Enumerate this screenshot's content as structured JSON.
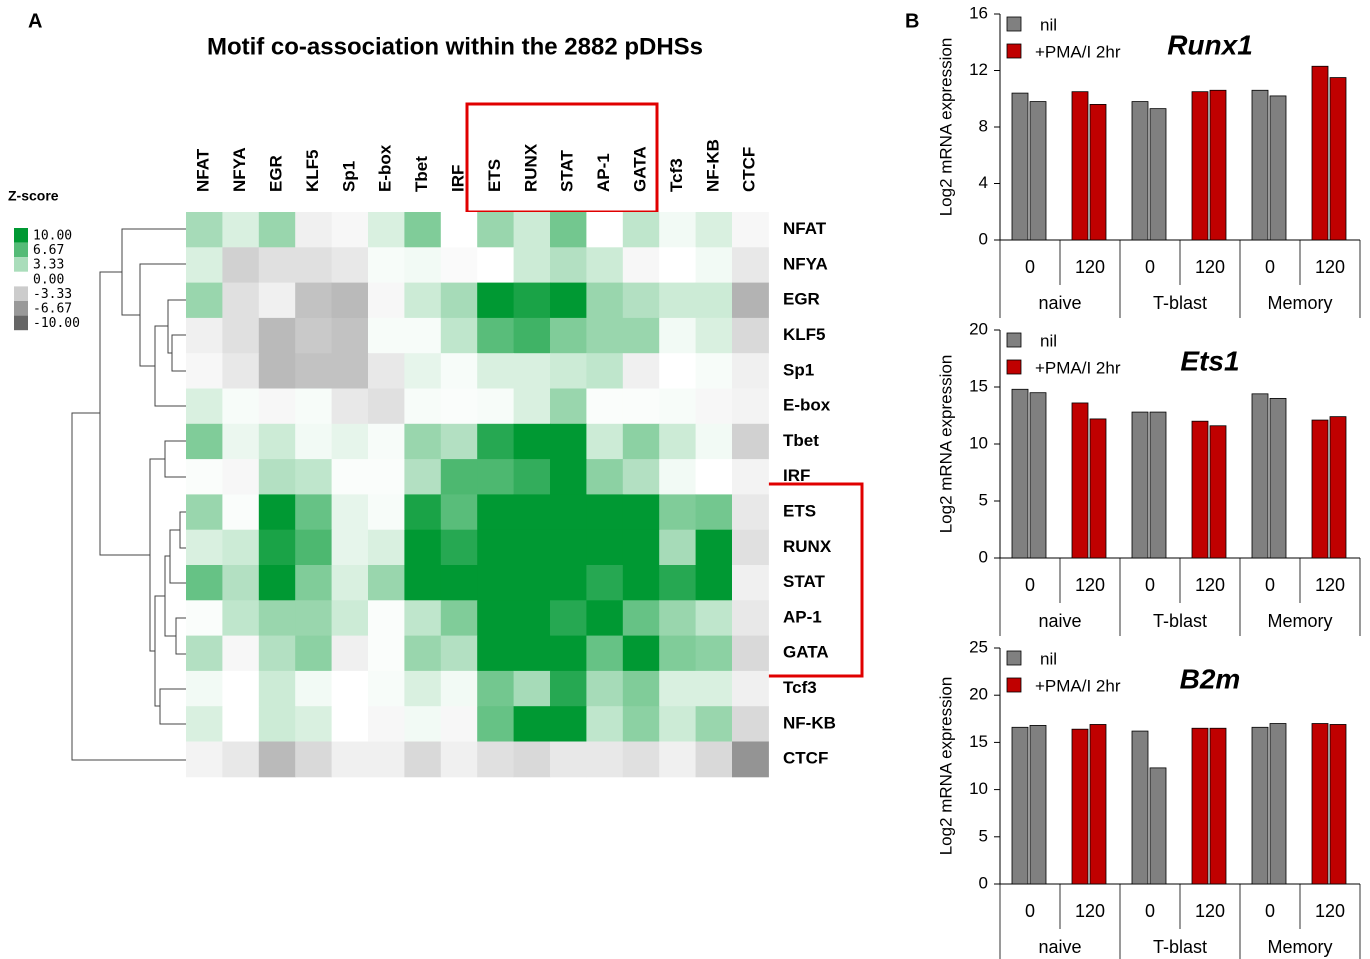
{
  "chart_data": [
    {
      "type": "heatmap",
      "panel_label": "A",
      "title": "Motif co-association within the 2882 pDHSs",
      "x_categories": [
        "NFAT",
        "NFYA",
        "EGR",
        "KLF5",
        "Sp1",
        "E-box",
        "Tbet",
        "IRF",
        "ETS",
        "RUNX",
        "STAT",
        "AP-1",
        "GATA",
        "Tcf3",
        "NF-KB",
        "CTCF"
      ],
      "y_categories": [
        "NFAT",
        "NFYA",
        "EGR",
        "KLF5",
        "Sp1",
        "E-box",
        "Tbet",
        "IRF",
        "ETS",
        "RUNX",
        "STAT",
        "AP-1",
        "GATA",
        "Tcf3",
        "NF-KB",
        "CTCF"
      ],
      "values": [
        [
          3.5,
          1.5,
          4,
          -1,
          -0.5,
          1.5,
          5,
          0,
          4,
          2,
          5.5,
          0,
          2.5,
          0.5,
          1.5,
          -0.5
        ],
        [
          1.5,
          -3,
          -2,
          -2,
          -1.5,
          0.3,
          0.5,
          -0.3,
          0,
          2,
          3,
          2,
          -0.5,
          0,
          0.5,
          -1.5
        ],
        [
          4,
          -2,
          -1,
          -4,
          -4.5,
          -0.5,
          2,
          3.5,
          10,
          9,
          10,
          4,
          3,
          2,
          2,
          -5
        ],
        [
          -1,
          -2,
          -4.5,
          -3.5,
          -4,
          0.3,
          0.3,
          2.5,
          6.5,
          7.5,
          5,
          4,
          4,
          0.5,
          1.5,
          -2.5
        ],
        [
          -0.5,
          -1.5,
          -4.5,
          -4,
          -4,
          -1.5,
          1,
          0.3,
          1.5,
          1.5,
          2,
          2.5,
          -1,
          0,
          0.3,
          -1
        ],
        [
          1.5,
          0.3,
          -0.5,
          0.3,
          -1.5,
          -2,
          0.3,
          0.2,
          0.3,
          1.5,
          4,
          0.2,
          0.2,
          0.3,
          -0.5,
          -0.8
        ],
        [
          5,
          0.8,
          2,
          0.5,
          1,
          0.3,
          4,
          3,
          8.5,
          10,
          10,
          2,
          4.5,
          2,
          0.5,
          -3
        ],
        [
          0.2,
          -0.5,
          3,
          2.5,
          0.2,
          0.2,
          3,
          7,
          7,
          8,
          10,
          4.5,
          3,
          0.5,
          0,
          -0.8
        ],
        [
          4,
          0.2,
          10,
          6,
          1,
          0.3,
          9,
          6.5,
          10,
          10,
          10,
          10,
          10,
          5,
          5.5,
          -1.5
        ],
        [
          1.5,
          2,
          9,
          7,
          1,
          1.5,
          10,
          8.5,
          10,
          10,
          10,
          10,
          10,
          3.5,
          10,
          -2
        ],
        [
          6,
          3,
          10,
          5,
          1.5,
          4,
          10,
          10,
          10,
          10,
          10,
          8.5,
          10,
          8.5,
          10,
          -1
        ],
        [
          0.2,
          2.5,
          4,
          4,
          2,
          0.2,
          2.5,
          5,
          10,
          10,
          8.5,
          10,
          6,
          4,
          2.5,
          -1.5
        ],
        [
          3,
          -0.5,
          3,
          4.5,
          -1,
          0.2,
          4,
          3,
          10,
          10,
          10,
          6,
          10,
          5,
          4.5,
          -2.5
        ],
        [
          0.5,
          0,
          2,
          0.5,
          0,
          0.3,
          1.5,
          0.5,
          5.5,
          3.5,
          8.5,
          3.5,
          5,
          1.5,
          1.5,
          -1
        ],
        [
          1.5,
          0,
          2,
          1.5,
          0,
          -0.5,
          0.5,
          -0.5,
          6,
          10,
          10,
          2.5,
          4.5,
          2,
          4,
          -2.5
        ],
        [
          -0.8,
          -1.5,
          -4.5,
          -2.5,
          -1,
          -1,
          -2.5,
          -1,
          -2,
          -2.5,
          -1.5,
          -1.5,
          -2,
          -1,
          -2.5,
          -7
        ]
      ],
      "zlim": [
        -10,
        10
      ],
      "colors": {
        "high": "#009933",
        "mid": "#ffffff",
        "low": "#666666"
      },
      "legend": {
        "title": "Z-score",
        "ticks": [
          {
            "value": 10,
            "label": "10.00"
          },
          {
            "value": 6.67,
            "label": "6.67"
          },
          {
            "value": 3.33,
            "label": "3.33"
          },
          {
            "value": 0,
            "label": "0.00"
          },
          {
            "value": -3.33,
            "label": "-3.33"
          },
          {
            "value": -6.67,
            "label": "-6.67"
          },
          {
            "value": -10,
            "label": "-10.00"
          }
        ]
      }
    },
    {
      "type": "bar",
      "panel_label": "B",
      "title": "Runx1",
      "ylabel": "Log2 mRNA  expression",
      "categories": [
        "0",
        "120",
        "0",
        "120",
        "0",
        "120"
      ],
      "groups": [
        "naive",
        "T-blast",
        "Memory"
      ],
      "series": [
        {
          "name": "nil",
          "color": "#808080",
          "values": [
            [
              10.4,
              9.8
            ],
            null,
            [
              9.8,
              9.3
            ],
            null,
            [
              10.6,
              10.2
            ],
            null
          ]
        },
        {
          "name": "+PMA/I 2hr",
          "color": "#c00000",
          "values": [
            null,
            [
              10.5,
              9.6
            ],
            null,
            [
              10.5,
              10.6
            ],
            null,
            [
              12.3,
              11.5
            ]
          ]
        }
      ],
      "ylim": [
        0,
        16
      ],
      "yticks": [
        0,
        4,
        8,
        12,
        16
      ],
      "legend": "upper left"
    },
    {
      "type": "bar",
      "title": "Ets1",
      "ylabel": "Log2 mRNA  expression",
      "categories": [
        "0",
        "120",
        "0",
        "120",
        "0",
        "120"
      ],
      "groups": [
        "naive",
        "T-blast",
        "Memory"
      ],
      "series": [
        {
          "name": "nil",
          "color": "#808080",
          "values": [
            [
              14.8,
              14.5
            ],
            null,
            [
              12.8,
              12.8
            ],
            null,
            [
              14.4,
              14.0
            ],
            null
          ]
        },
        {
          "name": "+PMA/I 2hr",
          "color": "#c00000",
          "values": [
            null,
            [
              13.6,
              12.2
            ],
            null,
            [
              12.0,
              11.6
            ],
            null,
            [
              12.1,
              12.4
            ]
          ]
        }
      ],
      "ylim": [
        0,
        20
      ],
      "yticks": [
        0,
        5,
        10,
        15,
        20
      ],
      "legend": "upper left"
    },
    {
      "type": "bar",
      "title": "B2m",
      "ylabel": "Log2 mRNA  expression",
      "categories": [
        "0",
        "120",
        "0",
        "120",
        "0",
        "120"
      ],
      "groups": [
        "naive",
        "T-blast",
        "Memory"
      ],
      "series": [
        {
          "name": "nil",
          "color": "#808080",
          "values": [
            [
              16.6,
              16.8
            ],
            null,
            [
              16.2,
              12.3
            ],
            null,
            [
              16.6,
              17.0
            ],
            null
          ]
        },
        {
          "name": "+PMA/I 2hr",
          "color": "#c00000",
          "values": [
            null,
            [
              16.4,
              16.9
            ],
            null,
            [
              16.5,
              16.5
            ],
            null,
            [
              17.0,
              16.9
            ]
          ]
        }
      ],
      "ylim": [
        0,
        25
      ],
      "yticks": [
        0,
        5,
        10,
        15,
        20,
        25
      ],
      "legend": "upper left"
    }
  ]
}
